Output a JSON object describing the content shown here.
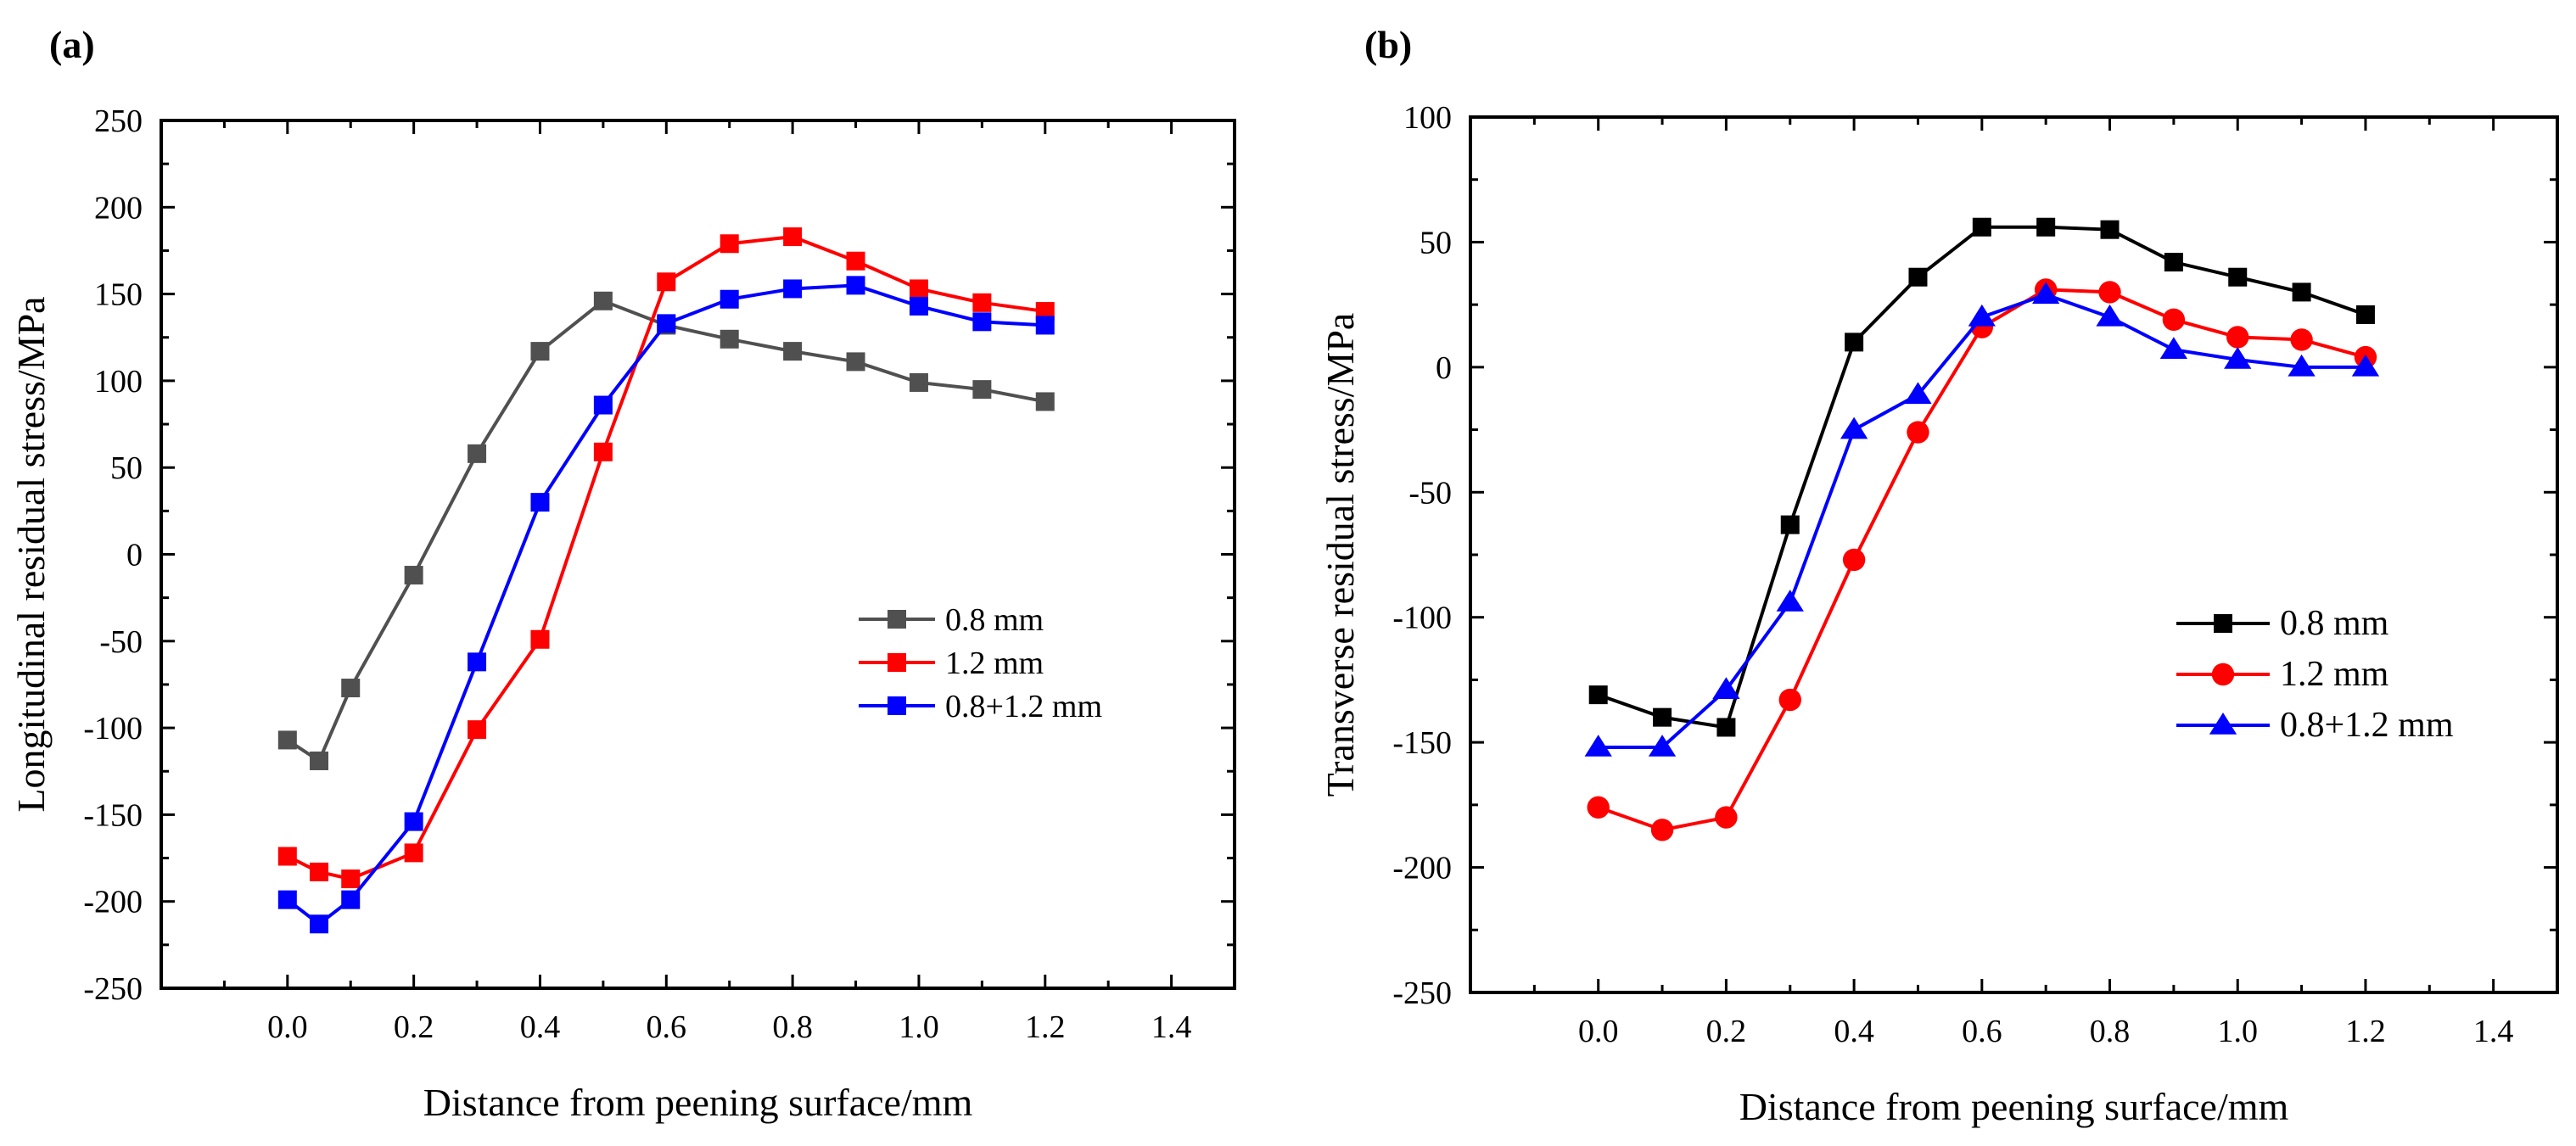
{
  "chart_data": [
    {
      "type": "line",
      "panel_label": "(a)",
      "title": "",
      "xlabel": "Distance from peening surface/mm",
      "ylabel": "Longitudinal residual stress/MPa",
      "xlim": [
        -0.2,
        1.5
      ],
      "ylim": [
        -250,
        250
      ],
      "x_ticks": [
        0.0,
        0.2,
        0.4,
        0.6,
        0.8,
        1.0,
        1.2,
        1.4
      ],
      "x_tick_labels": [
        "0.0",
        "0.2",
        "0.4",
        "0.6",
        "0.8",
        "1.0",
        "1.2",
        "1.4"
      ],
      "y_ticks": [
        -250,
        -200,
        -150,
        -100,
        -50,
        0,
        50,
        100,
        150,
        200,
        250
      ],
      "y_tick_labels": [
        "-250",
        "-200",
        "-150",
        "-100",
        "-50",
        "0",
        "50",
        "100",
        "150",
        "200",
        "250"
      ],
      "grid": false,
      "legend_position": "center-right",
      "series": [
        {
          "name": "0.8 mm",
          "color": "#505050",
          "marker": "square",
          "x": [
            0.0,
            0.05,
            0.1,
            0.2,
            0.3,
            0.4,
            0.5,
            0.6,
            0.7,
            0.8,
            0.9,
            1.0,
            1.1,
            1.2
          ],
          "values": [
            -107,
            -119,
            -77,
            -12,
            58,
            117,
            146,
            132,
            124,
            117,
            111,
            99,
            95,
            88
          ]
        },
        {
          "name": "1.2 mm",
          "color": "#ff0000",
          "marker": "square",
          "x": [
            0.0,
            0.05,
            0.1,
            0.2,
            0.3,
            0.4,
            0.5,
            0.6,
            0.7,
            0.8,
            0.9,
            1.0,
            1.1,
            1.2
          ],
          "values": [
            -174,
            -183,
            -187,
            -172,
            -101,
            -49,
            59,
            157,
            179,
            183,
            169,
            153,
            145,
            140
          ]
        },
        {
          "name": "0.8+1.2 mm",
          "color": "#0000ff",
          "marker": "square",
          "x": [
            0.0,
            0.05,
            0.1,
            0.2,
            0.3,
            0.4,
            0.5,
            0.6,
            0.7,
            0.8,
            0.9,
            1.0,
            1.1,
            1.2
          ],
          "values": [
            -199,
            -213,
            -199,
            -154,
            -62,
            30,
            86,
            133,
            147,
            153,
            155,
            143,
            134,
            132
          ]
        }
      ]
    },
    {
      "type": "line",
      "panel_label": "(b)",
      "title": "",
      "xlabel": "Distance from peening surface/mm",
      "ylabel": "Transverse residual stress/MPa",
      "xlim": [
        -0.2,
        1.5
      ],
      "ylim": [
        -250,
        100
      ],
      "x_ticks": [
        0.0,
        0.2,
        0.4,
        0.6,
        0.8,
        1.0,
        1.2,
        1.4
      ],
      "x_tick_labels": [
        "0.0",
        "0.2",
        "0.4",
        "0.6",
        "0.8",
        "1.0",
        "1.2",
        "1.4"
      ],
      "y_ticks": [
        -250,
        -200,
        -150,
        -100,
        -50,
        0,
        50,
        100
      ],
      "y_tick_labels": [
        "-250",
        "-200",
        "-150",
        "-100",
        "-50",
        "0",
        "50",
        "100"
      ],
      "grid": false,
      "legend_position": "center-right",
      "series": [
        {
          "name": "0.8 mm",
          "color": "#000000",
          "marker": "square",
          "x": [
            0.0,
            0.1,
            0.2,
            0.3,
            0.4,
            0.5,
            0.6,
            0.7,
            0.8,
            0.9,
            1.0,
            1.1,
            1.2
          ],
          "values": [
            -131,
            -140,
            -144,
            -63,
            10,
            36,
            56,
            56,
            55,
            42,
            36,
            30,
            21
          ]
        },
        {
          "name": "1.2 mm",
          "color": "#ff0000",
          "marker": "circle",
          "x": [
            0.0,
            0.1,
            0.2,
            0.3,
            0.4,
            0.5,
            0.6,
            0.7,
            0.8,
            0.9,
            1.0,
            1.1,
            1.2
          ],
          "values": [
            -176,
            -185,
            -180,
            -133,
            -77,
            -26,
            16,
            31,
            30,
            19,
            12,
            11,
            4
          ]
        },
        {
          "name": "0.8+1.2 mm",
          "color": "#0000ff",
          "marker": "triangle",
          "x": [
            0.0,
            0.1,
            0.2,
            0.3,
            0.4,
            0.5,
            0.6,
            0.7,
            0.8,
            0.9,
            1.0,
            1.1,
            1.2
          ],
          "values": [
            -152,
            -152,
            -129,
            -94,
            -25,
            -11,
            20,
            29,
            20,
            7,
            3,
            0,
            0
          ]
        }
      ]
    }
  ]
}
